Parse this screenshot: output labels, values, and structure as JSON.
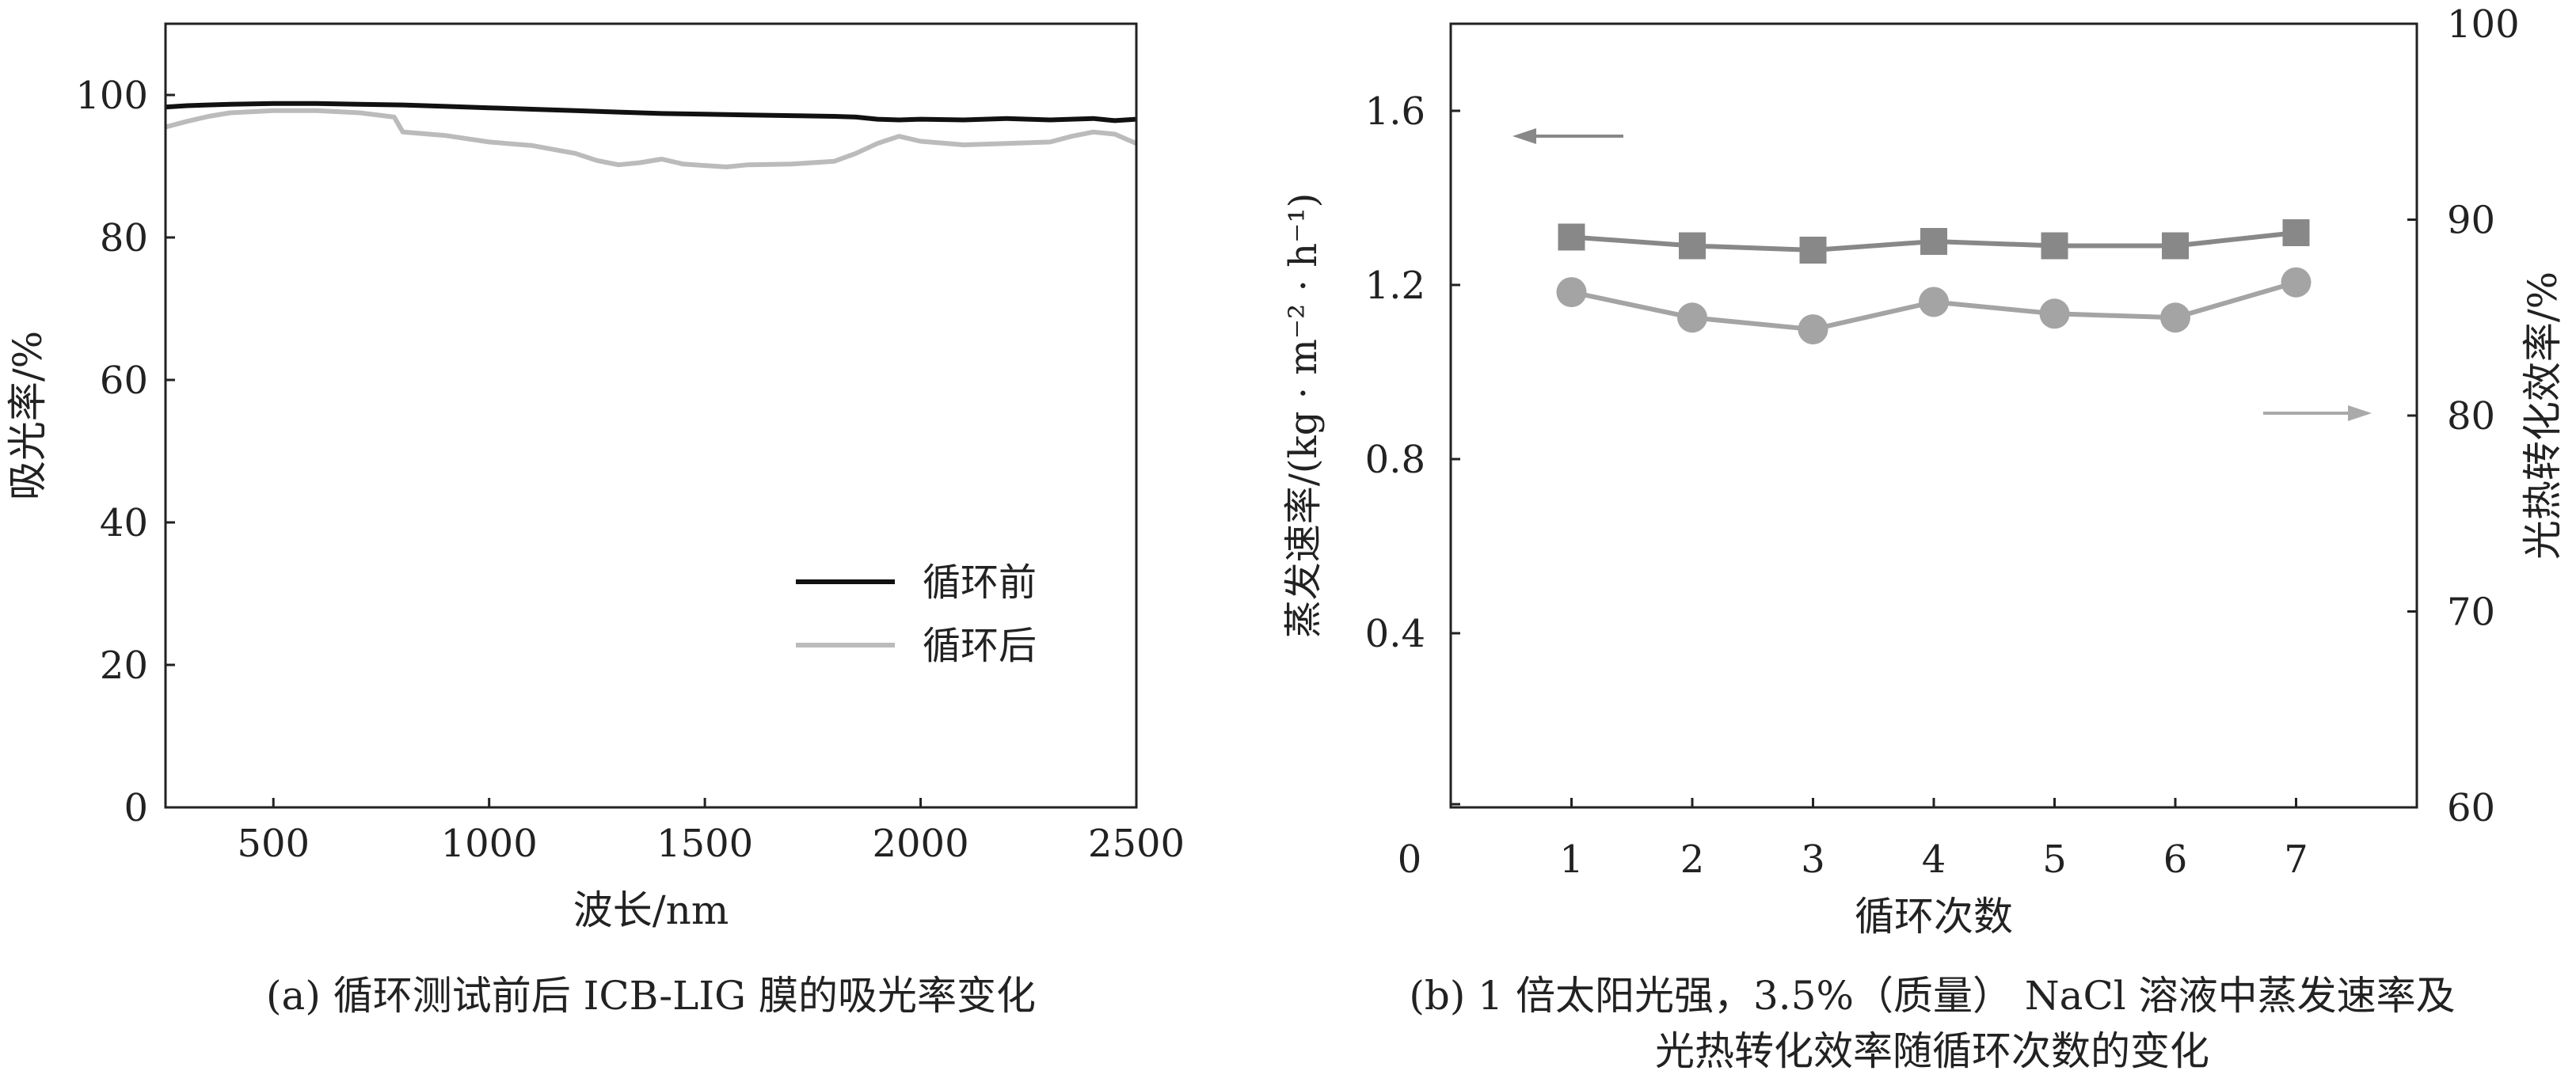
{
  "chart_data": [
    {
      "id": "a",
      "type": "line",
      "caption": "(a) 循环测试前后 ICB-LIG 膜的吸光率变化",
      "xlabel": "波长/nm",
      "ylabel": "吸光率/%",
      "xlim": [
        250,
        2500
      ],
      "ylim": [
        0,
        110
      ],
      "xticks": [
        500,
        1000,
        1500,
        2000,
        2500
      ],
      "yticks": [
        0,
        20,
        40,
        60,
        80,
        100
      ],
      "legend_position": "center-right",
      "series": [
        {
          "name": "循环前",
          "color": "#111111",
          "x": [
            250,
            300,
            400,
            500,
            600,
            700,
            800,
            900,
            1000,
            1100,
            1200,
            1300,
            1400,
            1500,
            1600,
            1700,
            1800,
            1850,
            1900,
            1950,
            2000,
            2100,
            2200,
            2300,
            2400,
            2450,
            2500
          ],
          "y": [
            98.3,
            98.5,
            98.7,
            98.8,
            98.8,
            98.7,
            98.6,
            98.4,
            98.2,
            98.0,
            97.8,
            97.6,
            97.4,
            97.3,
            97.2,
            97.1,
            97.0,
            96.9,
            96.6,
            96.5,
            96.6,
            96.5,
            96.7,
            96.5,
            96.7,
            96.4,
            96.6
          ]
        },
        {
          "name": "循环后",
          "color": "#bbbbbb",
          "x": [
            250,
            300,
            350,
            400,
            500,
            600,
            700,
            780,
            800,
            900,
            1000,
            1100,
            1200,
            1250,
            1300,
            1350,
            1400,
            1450,
            1500,
            1550,
            1600,
            1700,
            1800,
            1850,
            1900,
            1950,
            2000,
            2100,
            2200,
            2300,
            2350,
            2400,
            2450,
            2500
          ],
          "y": [
            95.5,
            96.3,
            97.0,
            97.5,
            97.8,
            97.8,
            97.5,
            96.9,
            94.8,
            94.3,
            93.4,
            92.9,
            91.8,
            90.8,
            90.2,
            90.5,
            91.0,
            90.3,
            90.1,
            89.9,
            90.2,
            90.3,
            90.7,
            91.8,
            93.2,
            94.2,
            93.5,
            93.0,
            93.2,
            93.4,
            94.2,
            94.8,
            94.5,
            93.2
          ]
        }
      ]
    },
    {
      "id": "b",
      "type": "line",
      "caption_lines": [
        "(b) 1 倍太阳光强，3.5%（质量） NaCl 溶液中蒸发速率及",
        "光热转化效率随循环次数的变化"
      ],
      "xlabel": "循环次数",
      "ylabel_left": "蒸发速率/(kg · m⁻² · h⁻¹)",
      "ylabel_right": "光热转化效率/%",
      "origin_label": "0",
      "xlim": [
        0,
        8
      ],
      "ylim_left": [
        0,
        1.8
      ],
      "ylim_right": [
        60,
        100
      ],
      "xticks": [
        1,
        2,
        3,
        4,
        5,
        6,
        7
      ],
      "yticks_left": [
        0.4,
        0.8,
        1.2,
        1.6
      ],
      "yticks_right": [
        60,
        70,
        80,
        90,
        100
      ],
      "categories": [
        1,
        2,
        3,
        4,
        5,
        6,
        7
      ],
      "series": [
        {
          "name": "蒸发速率",
          "axis": "left",
          "marker": "square",
          "color": "#888888",
          "values": [
            1.31,
            1.29,
            1.28,
            1.3,
            1.29,
            1.29,
            1.32
          ]
        },
        {
          "name": "光热转化效率",
          "axis": "right",
          "marker": "circle",
          "color": "#a4a4a4",
          "values": [
            86.3,
            85.0,
            84.4,
            85.8,
            85.2,
            85.0,
            86.8
          ]
        }
      ],
      "annotations": [
        {
          "type": "arrow",
          "direction": "left",
          "target_axis": "left"
        },
        {
          "type": "arrow",
          "direction": "right",
          "target_axis": "right"
        }
      ]
    }
  ]
}
